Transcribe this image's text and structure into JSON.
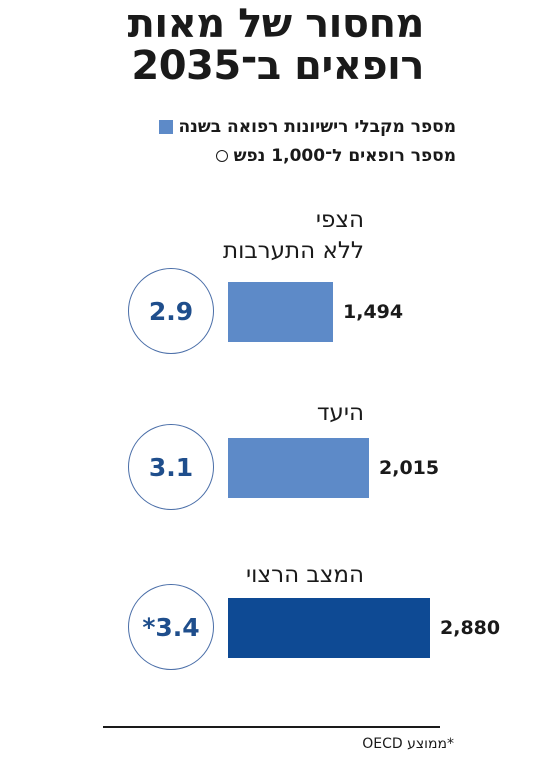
{
  "title_lines": [
    "מחסור של מאות",
    "רופאים ב־2035"
  ],
  "legend": [
    {
      "label": "מספר מקבלי רישיונות רפואה בשנה",
      "marker": "square",
      "color": "#5d8ac8"
    },
    {
      "label": "מספר רופאים ל־1,000 נפש",
      "marker": "circle"
    }
  ],
  "chart_data": {
    "type": "bar",
    "orientation": "horizontal",
    "categories": [
      "הצפי ללא התערבות",
      "היעד",
      "המצב הרצוי"
    ],
    "category_lines": [
      [
        "הצפי",
        "ללא התערבות"
      ],
      [
        "היעד"
      ],
      [
        "המצב הרצוי"
      ]
    ],
    "series": [
      {
        "name": "מספר מקבלי רישיונות רפואה בשנה",
        "values": [
          1494,
          2015,
          2880
        ],
        "labels": [
          "1,494",
          "2,015",
          "2,880"
        ]
      },
      {
        "name": "מספר רופאים ל־1,000 נפש",
        "values": [
          2.9,
          3.1,
          3.4
        ],
        "labels": [
          "2.9",
          "3.1",
          "*3.4"
        ]
      }
    ],
    "bar_colors": [
      "#5d8ac8",
      "#5d8ac8",
      "#0e4a94"
    ]
  },
  "source": "*ממוצע OECD"
}
